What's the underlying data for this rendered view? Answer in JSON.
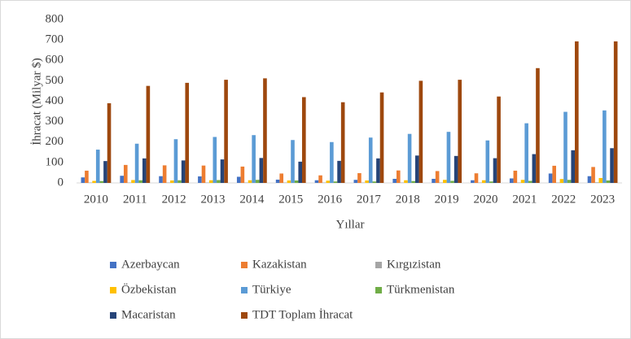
{
  "chart_data": {
    "type": "bar",
    "y_label": "İhracat (Milyar $)",
    "x_label": "Yıllar",
    "categories": [
      "2010",
      "2011",
      "2012",
      "2013",
      "2014",
      "2015",
      "2016",
      "2017",
      "2018",
      "2019",
      "2020",
      "2021",
      "2022",
      "2023"
    ],
    "series": [
      {
        "name": "Azerbaycan",
        "color": "#4472c4",
        "values": [
          27,
          35,
          33,
          32,
          30,
          16,
          13,
          15,
          20,
          20,
          13,
          22,
          46,
          33
        ]
      },
      {
        "name": "Kazakistan",
        "color": "#ed7d31",
        "values": [
          60,
          88,
          86,
          85,
          80,
          46,
          37,
          48,
          61,
          58,
          47,
          60,
          84,
          78
        ]
      },
      {
        "name": "Kırgızistan",
        "color": "#a5a5a5",
        "values": [
          2,
          2,
          2,
          2,
          2,
          2,
          2,
          2,
          2,
          2,
          2,
          2,
          2,
          3
        ]
      },
      {
        "name": "Özbekistan",
        "color": "#ffc000",
        "values": [
          10,
          14,
          12,
          13,
          13,
          12,
          11,
          12,
          13,
          15,
          13,
          15,
          19,
          24
        ]
      },
      {
        "name": "Türkiye",
        "color": "#5b9bd5",
        "values": [
          163,
          192,
          214,
          225,
          234,
          210,
          200,
          222,
          240,
          250,
          208,
          292,
          348,
          355
        ]
      },
      {
        "name": "Türkmenistan",
        "color": "#70ad47",
        "values": [
          9,
          13,
          13,
          14,
          15,
          12,
          7,
          7,
          9,
          10,
          7,
          10,
          15,
          12
        ]
      },
      {
        "name": "Macaristan",
        "color": "#264478",
        "values": [
          107,
          120,
          110,
          115,
          122,
          104,
          108,
          120,
          134,
          132,
          121,
          141,
          160,
          170
        ]
      },
      {
        "name": "TDT Toplam İhracat",
        "color": "#9e480e",
        "values": [
          390,
          475,
          490,
          505,
          512,
          420,
          395,
          443,
          500,
          505,
          423,
          562,
          693,
          693
        ]
      }
    ],
    "ylim": [
      0,
      800
    ],
    "yticks": [
      0,
      100,
      200,
      300,
      400,
      500,
      600,
      700,
      800
    ],
    "grid": false,
    "legend": "bottom"
  }
}
